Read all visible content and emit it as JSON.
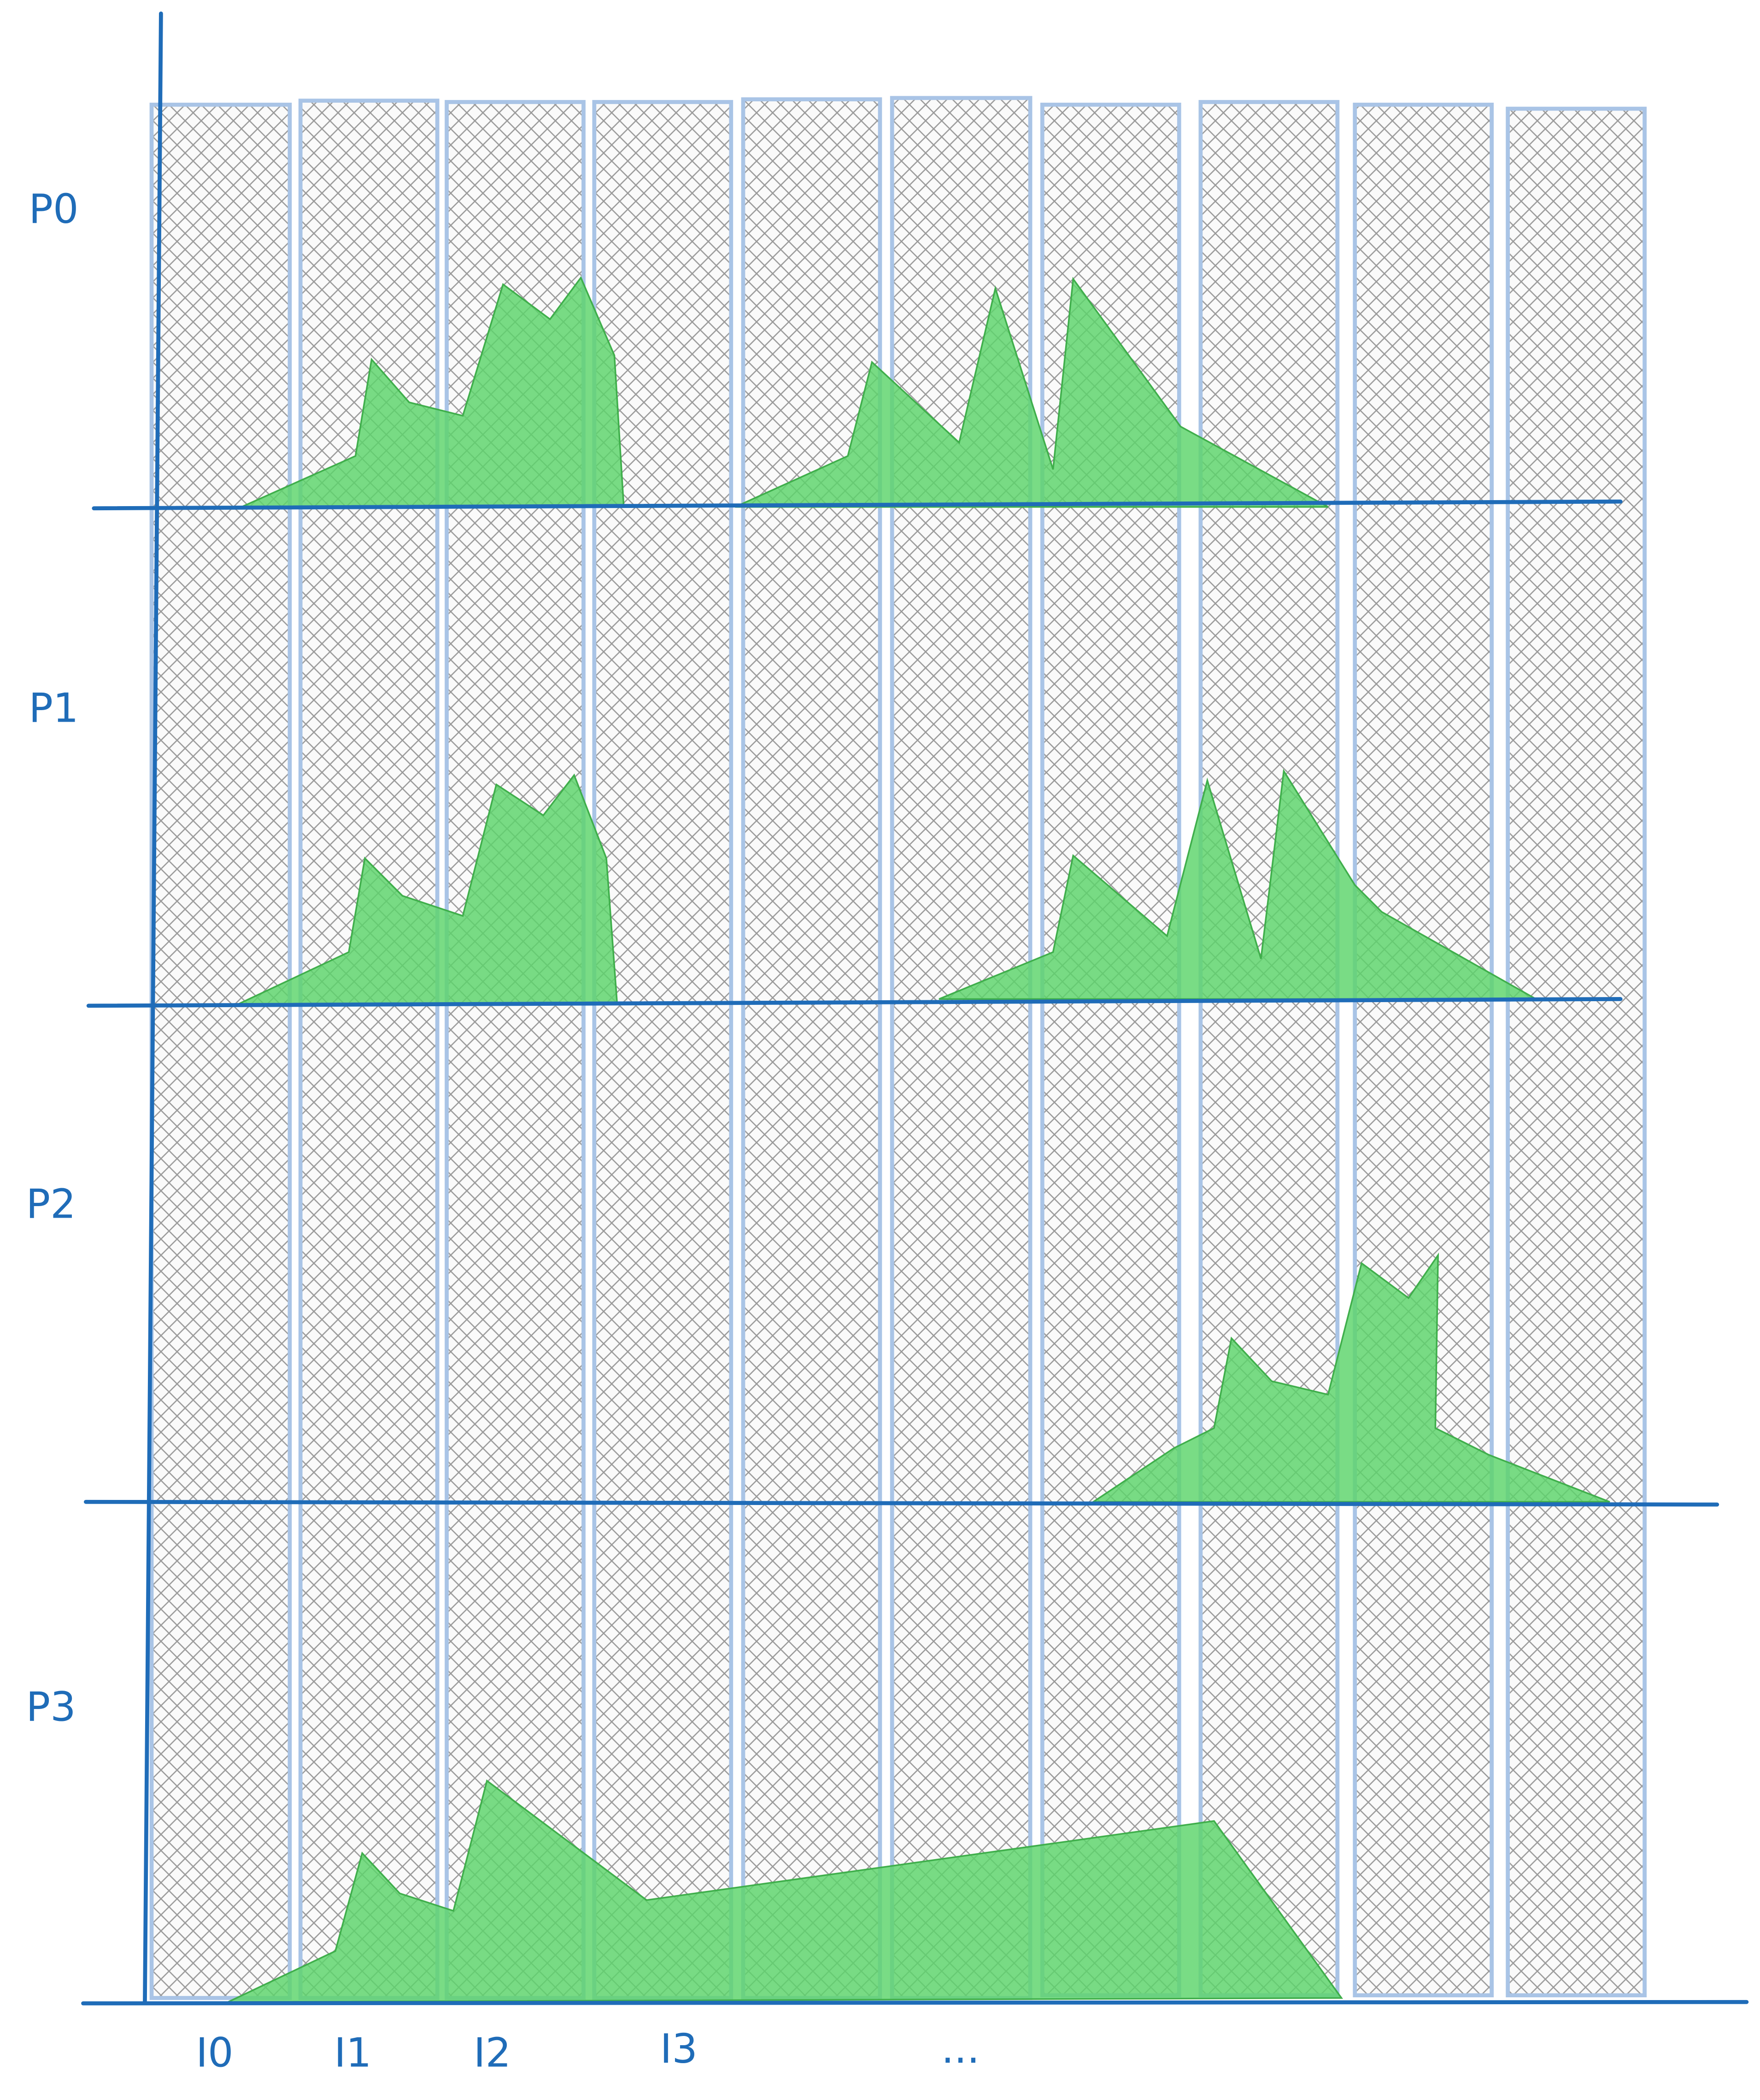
{
  "row_labels": [
    "P0",
    "P1",
    "P2",
    "P3"
  ],
  "column_labels": [
    "I0",
    "I1",
    "I2",
    "I3",
    "..."
  ]
}
